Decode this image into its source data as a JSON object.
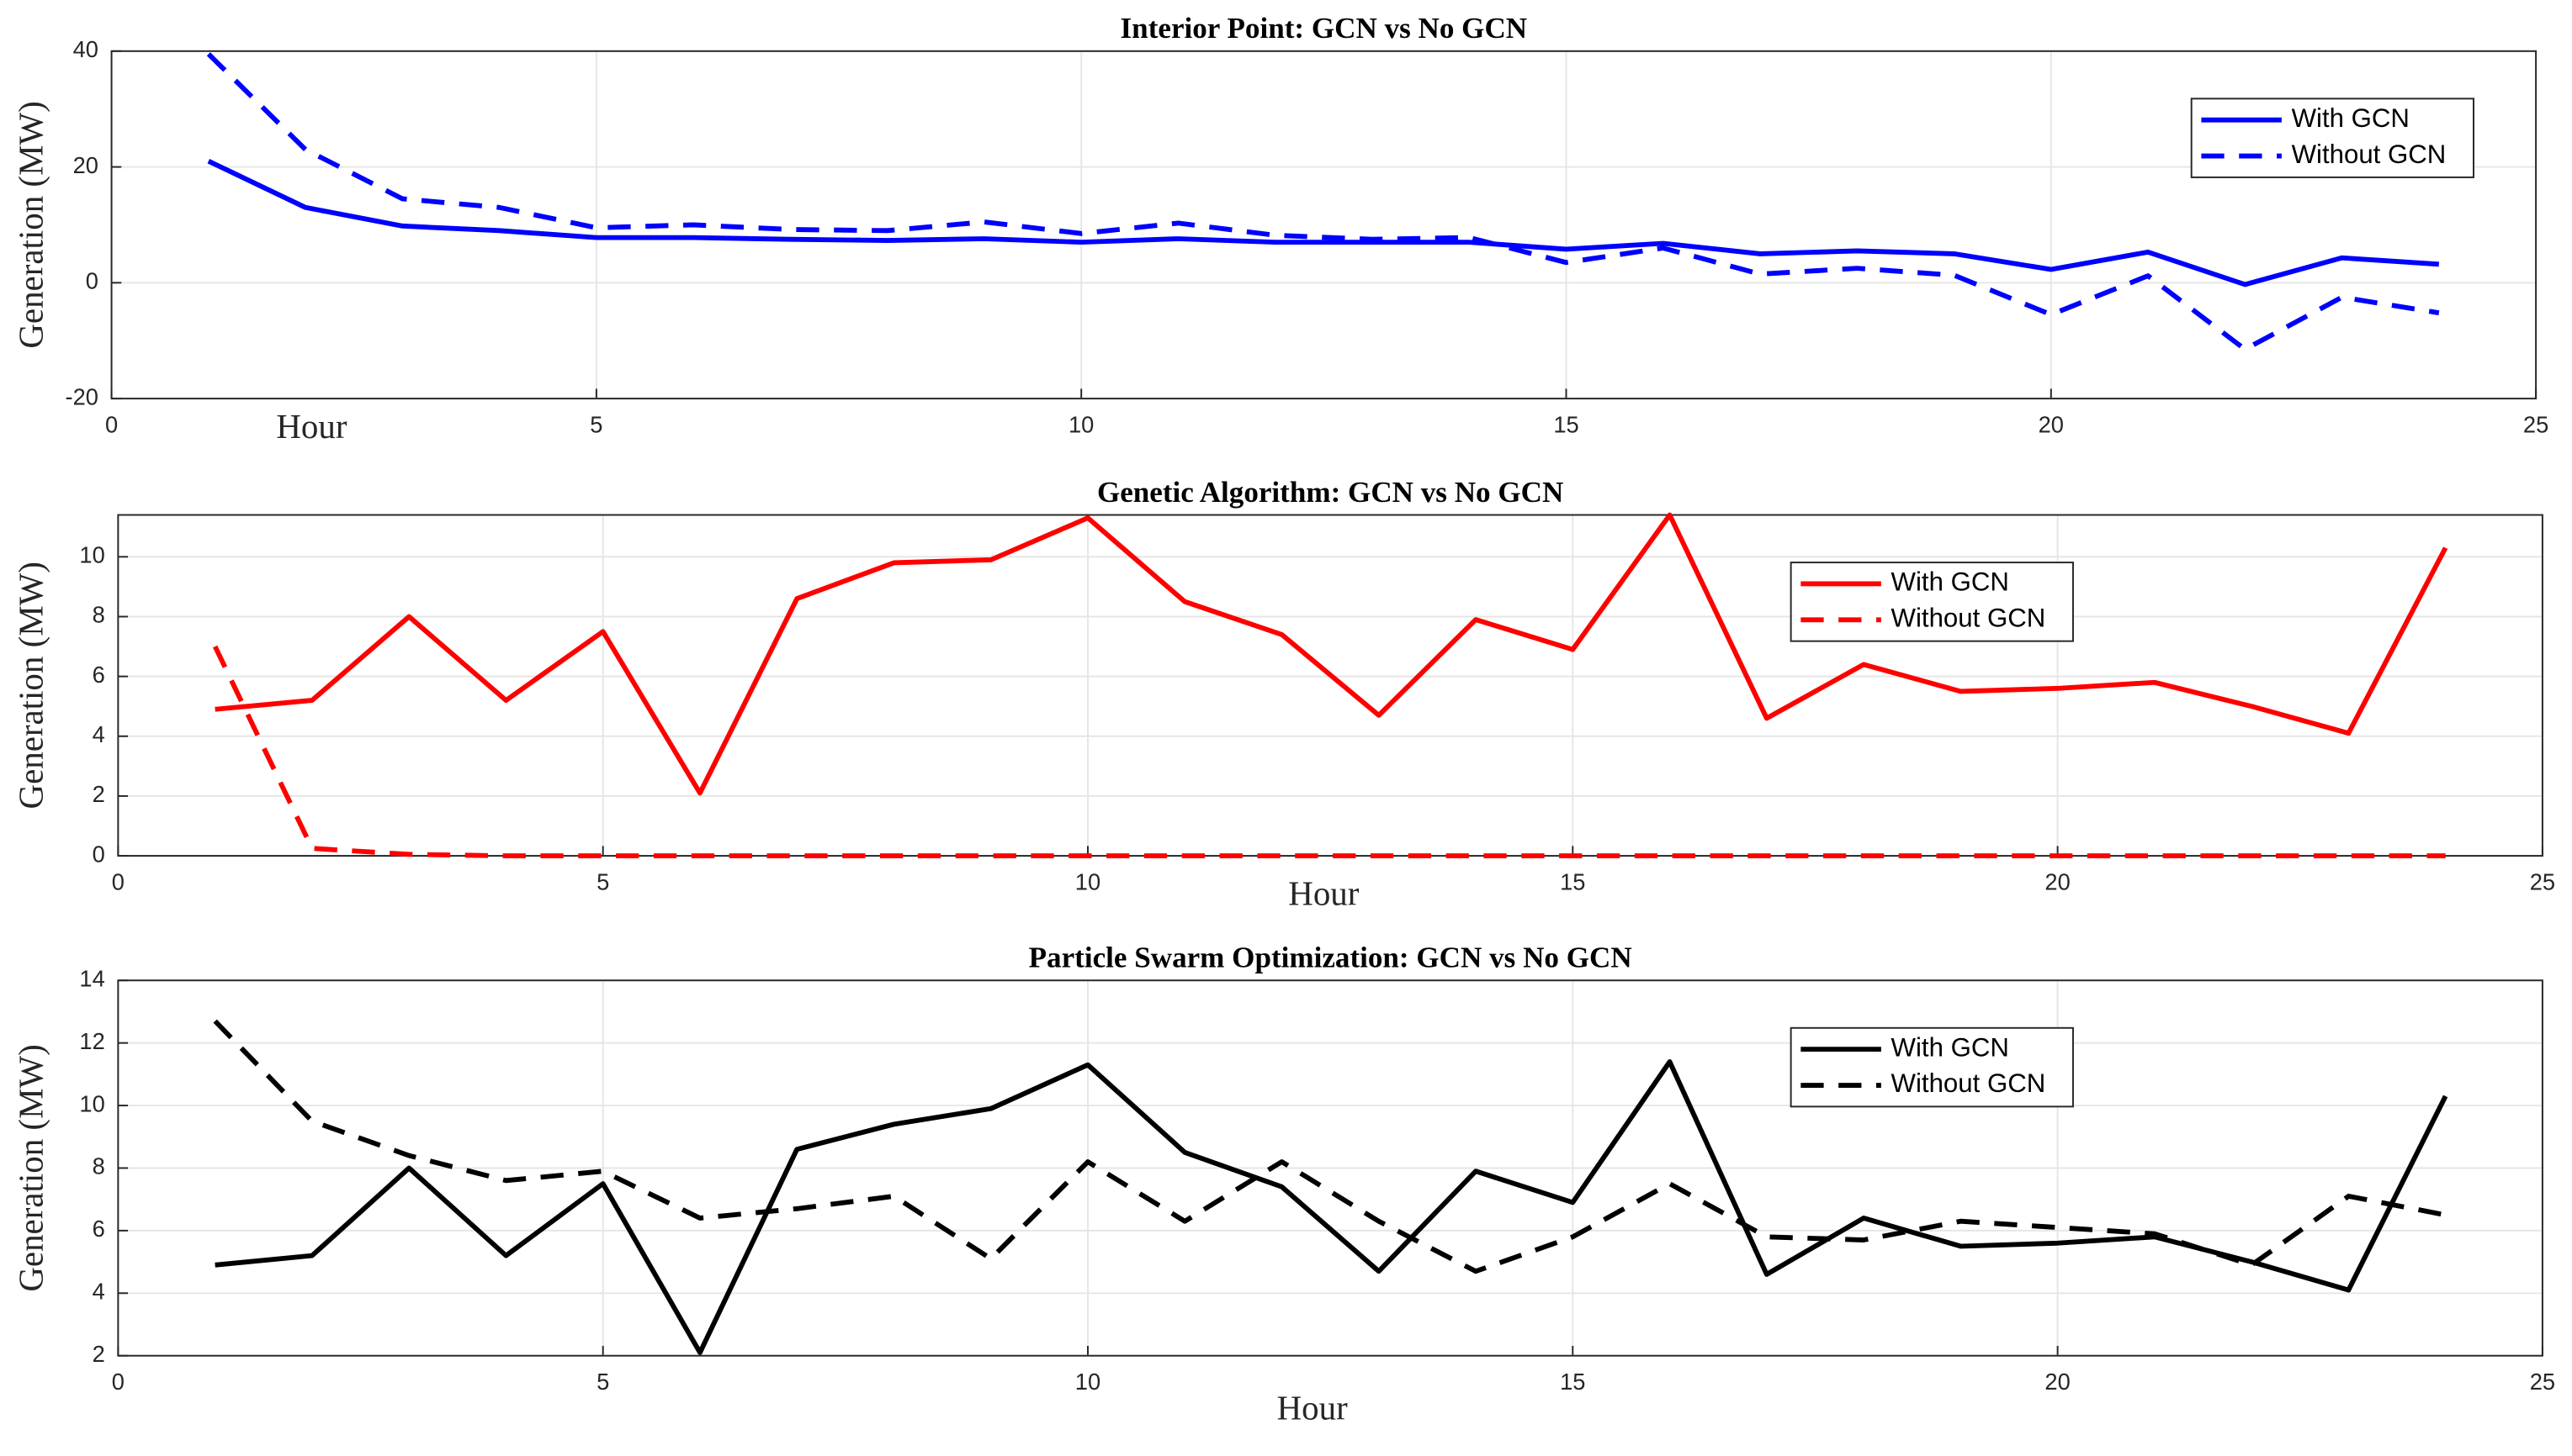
{
  "chart_data": [
    {
      "type": "line",
      "title": "Interior Point: GCN vs No GCN",
      "xlabel": "Hour",
      "ylabel": "Generation (MW)",
      "x": [
        1,
        2,
        3,
        4,
        5,
        6,
        7,
        8,
        9,
        10,
        11,
        12,
        13,
        14,
        15,
        16,
        17,
        18,
        19,
        20,
        21,
        22,
        23,
        24
      ],
      "series": [
        {
          "name": "With GCN",
          "color": "#0000ff",
          "linestyle": "solid",
          "values": [
            21,
            13,
            9.8,
            9,
            7.8,
            7.8,
            7.5,
            7.3,
            7.6,
            7,
            7.6,
            7,
            7,
            7,
            5.8,
            6.8,
            5,
            5.5,
            5,
            2.3,
            5.3,
            -0.3,
            4.3,
            3.2
          ]
        },
        {
          "name": "Without GCN",
          "color": "#0000ff",
          "linestyle": "dashed",
          "values": [
            39.5,
            23,
            14.5,
            13,
            9.5,
            10,
            9.2,
            9,
            10.5,
            8.5,
            10.3,
            8.2,
            7.5,
            7.8,
            3.5,
            6,
            1.5,
            2.5,
            1.3,
            -5.5,
            1.2,
            -11.5,
            -2.5,
            -5.2
          ]
        }
      ],
      "xlim": [
        0,
        25
      ],
      "xticks": [
        0,
        5,
        10,
        15,
        20,
        25
      ],
      "ylim": [
        -20,
        40
      ],
      "yticks": [
        -20,
        0,
        20,
        40
      ],
      "grid": true,
      "legend": "upper right"
    },
    {
      "type": "line",
      "title": "Genetic Algorithm: GCN vs No GCN",
      "xlabel": "Hour",
      "ylabel": "Generation (MW)",
      "x": [
        1,
        2,
        3,
        4,
        5,
        6,
        7,
        8,
        9,
        10,
        11,
        12,
        13,
        14,
        15,
        16,
        17,
        18,
        19,
        20,
        21,
        22,
        23,
        24
      ],
      "series": [
        {
          "name": "With GCN",
          "color": "#ff0000",
          "linestyle": "solid",
          "values": [
            4.9,
            5.2,
            8,
            5.2,
            7.5,
            2.1,
            8.6,
            9.8,
            9.9,
            11.3,
            8.5,
            7.4,
            4.7,
            7.9,
            6.9,
            11.4,
            4.6,
            6.4,
            5.5,
            5.6,
            5.8,
            5,
            4.1,
            10.3
          ]
        },
        {
          "name": "Without GCN",
          "color": "#ff0000",
          "linestyle": "dashed",
          "values": [
            7,
            0.25,
            0.05,
            0,
            0,
            0,
            0,
            0,
            0,
            0,
            0,
            0,
            0,
            0,
            0,
            0,
            0,
            0,
            0,
            0,
            0,
            0,
            0,
            0
          ]
        }
      ],
      "xlim": [
        0,
        25
      ],
      "xticks": [
        0,
        5,
        10,
        15,
        20,
        25
      ],
      "ylim": [
        0,
        11.4
      ],
      "yticks": [
        0,
        2,
        4,
        6,
        8,
        10
      ],
      "grid": true,
      "legend": "upper center"
    },
    {
      "type": "line",
      "title": "Particle Swarm Optimization: GCN vs No GCN",
      "xlabel": "Hour",
      "ylabel": "Generation (MW)",
      "x": [
        1,
        2,
        3,
        4,
        5,
        6,
        7,
        8,
        9,
        10,
        11,
        12,
        13,
        14,
        15,
        16,
        17,
        18,
        19,
        20,
        21,
        22,
        23,
        24
      ],
      "series": [
        {
          "name": "With GCN",
          "color": "#000000",
          "linestyle": "solid",
          "values": [
            4.9,
            5.2,
            8,
            5.2,
            7.5,
            2.1,
            8.6,
            9.4,
            9.9,
            11.3,
            8.5,
            7.4,
            4.7,
            7.9,
            6.9,
            11.4,
            4.6,
            6.4,
            5.5,
            5.6,
            5.8,
            5,
            4.1,
            10.3
          ]
        },
        {
          "name": "Without GCN",
          "color": "#000000",
          "linestyle": "dashed",
          "values": [
            12.7,
            9.5,
            8.4,
            7.6,
            7.9,
            6.4,
            6.7,
            7.1,
            5.1,
            8.2,
            6.3,
            8.2,
            6.3,
            4.7,
            5.8,
            7.5,
            5.8,
            5.7,
            6.3,
            6.1,
            5.9,
            4.9,
            7.1,
            6.5
          ]
        }
      ],
      "xlim": [
        0,
        25
      ],
      "xticks": [
        0,
        5,
        10,
        15,
        20,
        25
      ],
      "ylim": [
        2,
        14
      ],
      "yticks": [
        2,
        4,
        6,
        8,
        10,
        12,
        14
      ],
      "grid": true,
      "legend": "upper center"
    }
  ]
}
